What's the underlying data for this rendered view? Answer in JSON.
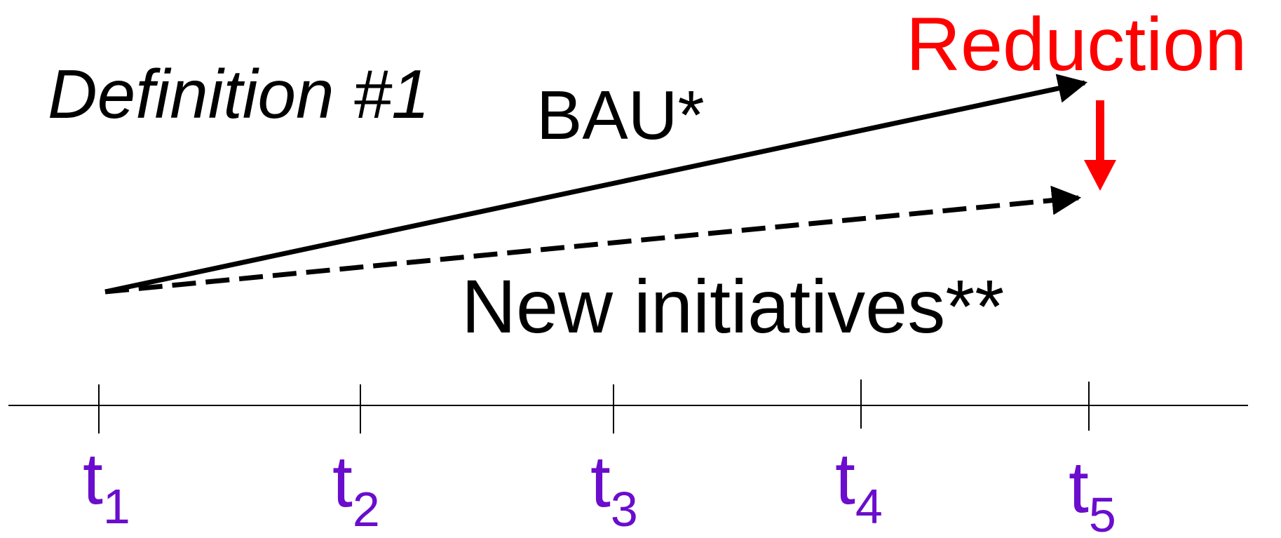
{
  "title": "Definition #1",
  "labels": {
    "bau": "BAU*",
    "new_initiatives": "New initiatives**",
    "reduction": "Reduction"
  },
  "timeline": {
    "ticks": [
      {
        "t": "t",
        "sub": "1"
      },
      {
        "t": "t",
        "sub": "2"
      },
      {
        "t": "t",
        "sub": "3"
      },
      {
        "t": "t",
        "sub": "4"
      },
      {
        "t": "t",
        "sub": "5"
      }
    ]
  },
  "colors": {
    "ink": "#000000",
    "reduction": "#ff0000",
    "tick_label": "#6a0dcc"
  }
}
